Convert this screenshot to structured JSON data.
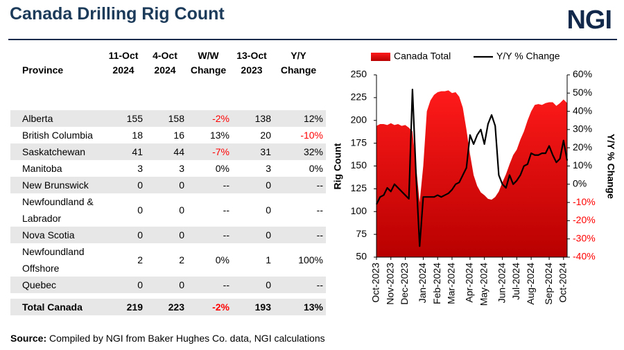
{
  "header": {
    "title": "Canada Drilling Rig Count",
    "logo": "NGI"
  },
  "table": {
    "negative_color": "#ff0000",
    "columns": [
      "Province",
      "11-Oct 2024",
      "4-Oct 2024",
      "W/W Change",
      "13-Oct 2023",
      "Y/Y Change"
    ],
    "rows": [
      [
        "Alberta",
        "155",
        "158",
        "-2%",
        "138",
        "12%"
      ],
      [
        "British Columbia",
        "18",
        "16",
        "13%",
        "20",
        "-10%"
      ],
      [
        "Saskatchewan",
        "41",
        "44",
        "-7%",
        "31",
        "32%"
      ],
      [
        "Manitoba",
        "3",
        "3",
        "0%",
        "3",
        "0%"
      ],
      [
        "New Brunswick",
        "0",
        "0",
        "--",
        "0",
        "--"
      ],
      [
        "Newfoundland & Labrador",
        "0",
        "0",
        "--",
        "0",
        "--"
      ],
      [
        "Nova Scotia",
        "0",
        "0",
        "--",
        "0",
        "--"
      ],
      [
        "Newfoundland Offshore",
        "2",
        "2",
        "0%",
        "1",
        "100%"
      ],
      [
        "Quebec",
        "0",
        "0",
        "--",
        "0",
        "--"
      ]
    ],
    "total": [
      "Total Canada",
      "219",
      "223",
      "-2%",
      "193",
      "13%"
    ]
  },
  "source": {
    "label": "Source:",
    "text": "Compiled by NGI from Baker Hughes Co. data, NGI calculations"
  },
  "chart_data": {
    "type": "combo",
    "legend": "top",
    "ylabel": "Rig Count",
    "y2label": "Y/Y % Change",
    "y2_negative_color": "#ff0000",
    "categories": [
      "Oct-2023",
      null,
      null,
      null,
      "Nov-2023",
      null,
      null,
      null,
      "Dec-2023",
      null,
      null,
      null,
      null,
      "Jan-2024",
      null,
      null,
      null,
      "Feb-2024",
      null,
      null,
      null,
      "Mar-2024",
      null,
      null,
      null,
      null,
      "Apr-2024",
      null,
      null,
      null,
      "May-2024",
      null,
      null,
      null,
      null,
      "Jun-2024",
      null,
      null,
      null,
      "Jul-2024",
      null,
      null,
      null,
      "Aug-2024",
      null,
      null,
      null,
      null,
      "Sep-2024",
      null,
      null,
      null,
      "Oct-2024",
      null
    ],
    "ylim": [
      50,
      250
    ],
    "yticks": [
      50,
      75,
      100,
      125,
      150,
      175,
      200,
      225,
      250
    ],
    "y2lim": [
      -40,
      60
    ],
    "y2ticks": [
      {
        "value": -40,
        "label": "-40%"
      },
      {
        "value": -30,
        "label": "-30%"
      },
      {
        "value": -20,
        "label": "-20%"
      },
      {
        "value": -10,
        "label": "-10%"
      },
      {
        "value": 0,
        "label": "0%"
      },
      {
        "value": 10,
        "label": "10%"
      },
      {
        "value": 20,
        "label": "20%"
      },
      {
        "value": 30,
        "label": "30%"
      },
      {
        "value": 40,
        "label": "40%"
      },
      {
        "value": 50,
        "label": "50%"
      },
      {
        "value": 60,
        "label": "60%"
      }
    ],
    "series": [
      {
        "name": "Canada Total",
        "type": "area",
        "color": "#d40000",
        "values": [
          194,
          196,
          196,
          195,
          197,
          195,
          196,
          194,
          195,
          192,
          188,
          150,
          110,
          150,
          210,
          222,
          228,
          231,
          232,
          232,
          233,
          230,
          231,
          226,
          214,
          190,
          163,
          140,
          128,
          121,
          118,
          114,
          113,
          116,
          122,
          132,
          141,
          152,
          162,
          168,
          179,
          188,
          200,
          210,
          217,
          218,
          217,
          219,
          220,
          220,
          216,
          219,
          223,
          219
        ]
      },
      {
        "name": "Y/Y % Change",
        "type": "line",
        "axis": "y2",
        "color": "#000000",
        "values": [
          -11,
          -7,
          -6,
          -2,
          -4,
          0,
          -2,
          -4,
          -6,
          -8,
          52,
          5,
          -34,
          -7,
          -7,
          -7,
          -7,
          -6,
          -7,
          -6,
          -5,
          -3,
          0,
          1,
          5,
          9,
          27,
          22,
          27,
          30,
          22,
          33,
          38,
          32,
          5,
          0,
          -2,
          5,
          0,
          2,
          5,
          10,
          11,
          17,
          16,
          16,
          17,
          17,
          21,
          16,
          12,
          14,
          24,
          13
        ]
      }
    ]
  }
}
